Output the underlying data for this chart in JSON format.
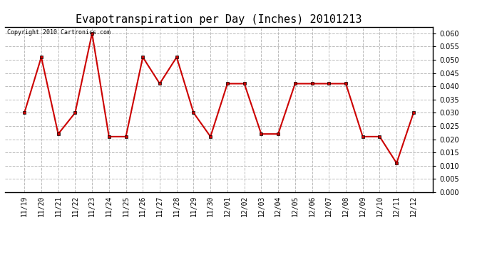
{
  "title": "Evapotranspiration per Day (Inches) 20101213",
  "copyright_text": "Copyright 2010 Cartronics.com",
  "categories": [
    "11/19",
    "11/20",
    "11/21",
    "11/22",
    "11/23",
    "11/24",
    "11/25",
    "11/26",
    "11/27",
    "11/28",
    "11/29",
    "11/30",
    "12/01",
    "12/02",
    "12/03",
    "12/04",
    "12/05",
    "12/06",
    "12/07",
    "12/08",
    "12/09",
    "12/10",
    "12/11",
    "12/12"
  ],
  "values": [
    0.03,
    0.051,
    0.022,
    0.03,
    0.06,
    0.021,
    0.021,
    0.051,
    0.041,
    0.051,
    0.03,
    0.021,
    0.041,
    0.041,
    0.022,
    0.022,
    0.041,
    0.041,
    0.041,
    0.041,
    0.021,
    0.021,
    0.011,
    0.03
  ],
  "line_color": "#cc0000",
  "marker": "s",
  "marker_size": 3,
  "marker_color": "#cc0000",
  "ylim": [
    0.0,
    0.0625
  ],
  "yticks": [
    0.0,
    0.005,
    0.01,
    0.015,
    0.02,
    0.025,
    0.03,
    0.035,
    0.04,
    0.045,
    0.05,
    0.055,
    0.06
  ],
  "grid_color": "#bbbbbb",
  "grid_linestyle": "--",
  "bg_color": "#ffffff",
  "title_fontsize": 11,
  "copyright_fontsize": 6,
  "tick_fontsize": 7
}
